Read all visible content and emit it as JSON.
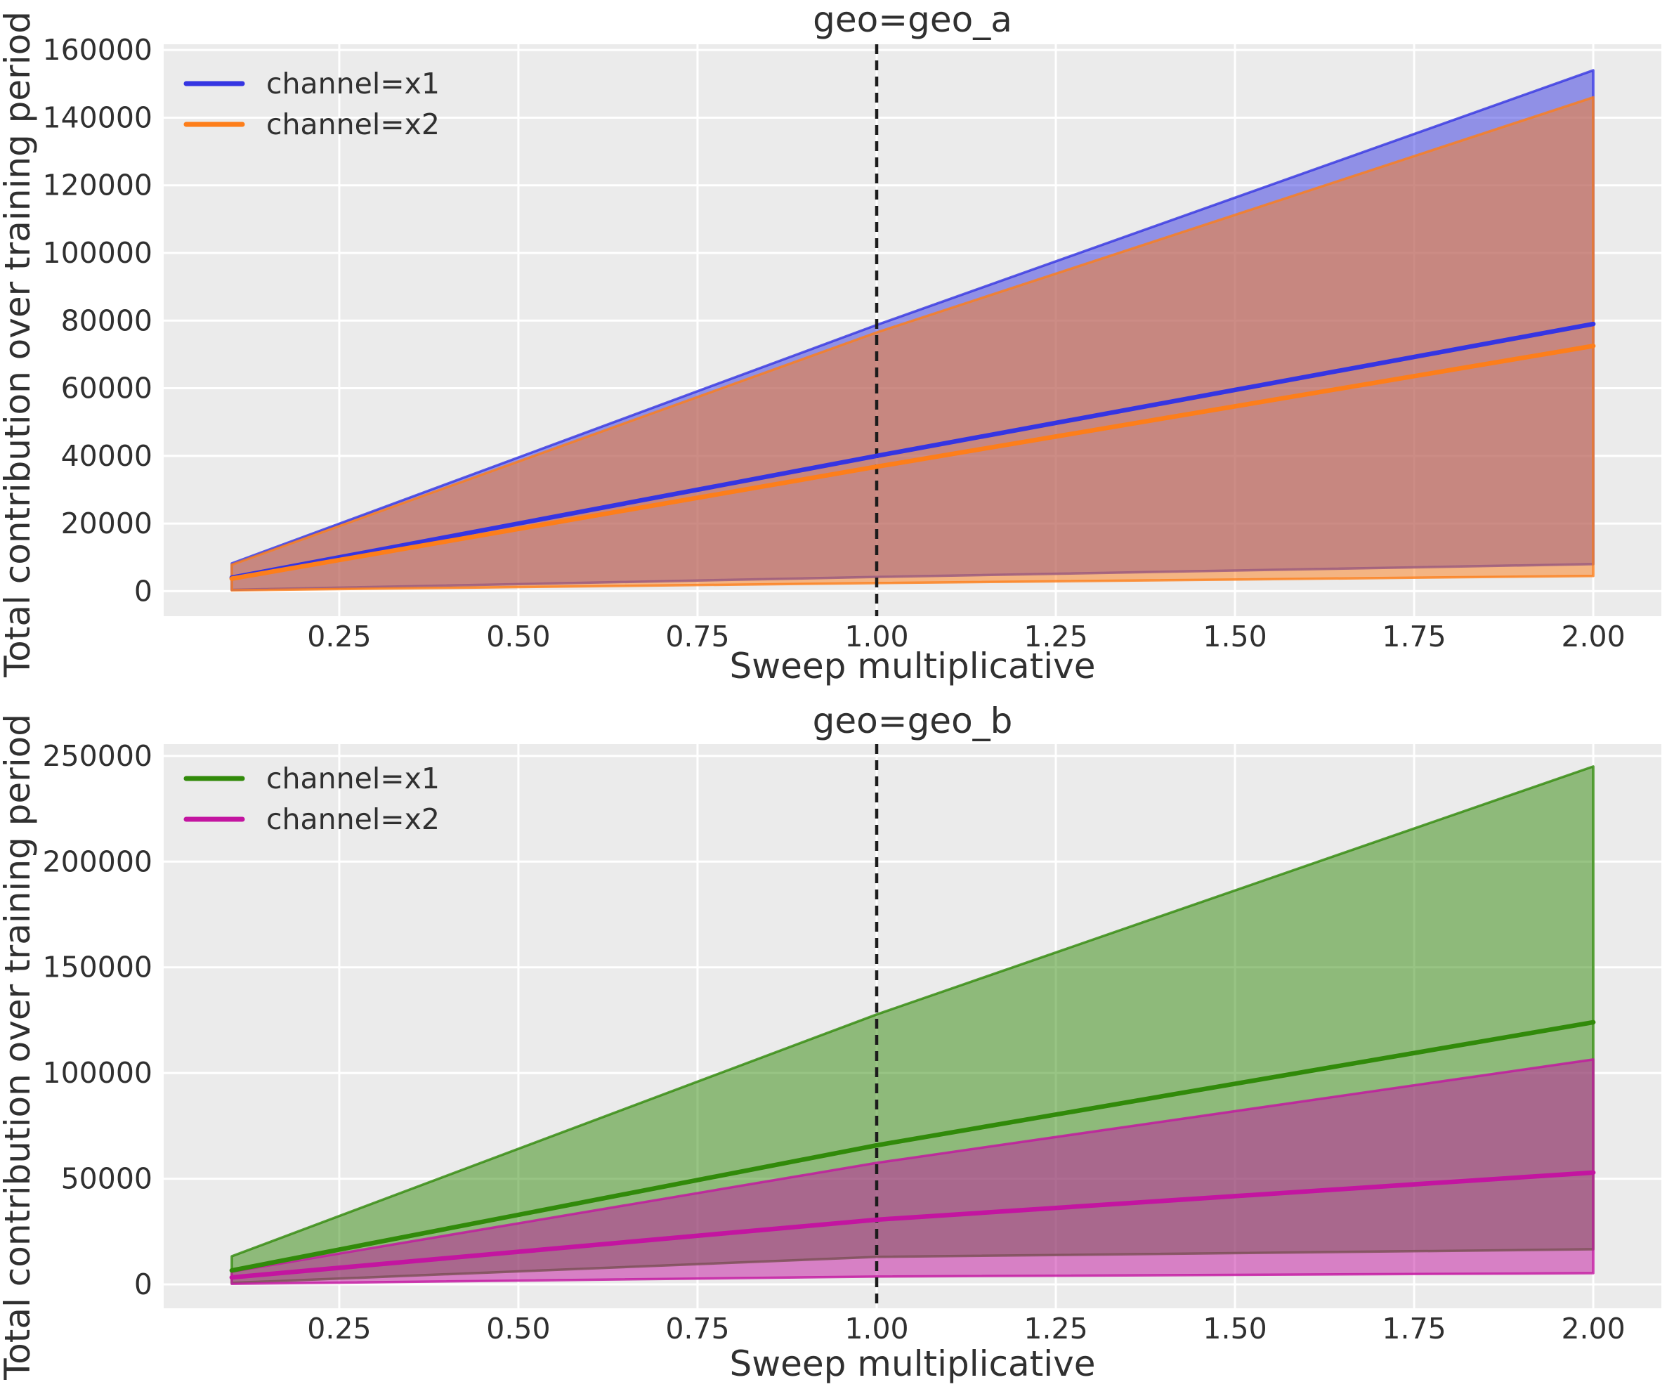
{
  "figure": {
    "background": "#ffffff",
    "plot_background": "#ebebeb",
    "grid_color": "#ffffff",
    "text_color": "#303030",
    "vline_color": "#1c1c1c"
  },
  "chart_data": [
    {
      "type": "line",
      "title": "geo=geo_a",
      "xlabel": "Sweep multiplicative",
      "ylabel": "Total contribution over training period",
      "xlim": [
        0.005,
        2.095
      ],
      "ylim": [
        -7400,
        161700
      ],
      "grid": true,
      "legend_position": "upper-left",
      "vline_x": 1.0,
      "xticks": [
        {
          "value": 0.25,
          "label": "0.25"
        },
        {
          "value": 0.5,
          "label": "0.50"
        },
        {
          "value": 0.75,
          "label": "0.75"
        },
        {
          "value": 1.0,
          "label": "1.00"
        },
        {
          "value": 1.25,
          "label": "1.25"
        },
        {
          "value": 1.5,
          "label": "1.50"
        },
        {
          "value": 1.75,
          "label": "1.75"
        },
        {
          "value": 2.0,
          "label": "2.00"
        }
      ],
      "yticks": [
        {
          "value": 0,
          "label": "0"
        },
        {
          "value": 20000,
          "label": "20000"
        },
        {
          "value": 40000,
          "label": "40000"
        },
        {
          "value": 60000,
          "label": "60000"
        },
        {
          "value": 80000,
          "label": "80000"
        },
        {
          "value": 100000,
          "label": "100000"
        },
        {
          "value": 120000,
          "label": "120000"
        },
        {
          "value": 140000,
          "label": "140000"
        },
        {
          "value": 160000,
          "label": "160000"
        }
      ],
      "x": [
        0.1,
        1.0,
        2.0
      ],
      "series": [
        {
          "name": "channel=x1",
          "color": "#3535e2",
          "mean": [
            4000,
            40000,
            79000
          ],
          "band_upper": [
            8200,
            78700,
            154000
          ],
          "band_lower": [
            400,
            4200,
            8000
          ]
        },
        {
          "name": "channel=x2",
          "color": "#fd7e1a",
          "mean": [
            3700,
            36800,
            72500
          ],
          "band_upper": [
            7800,
            76500,
            146000
          ],
          "band_lower": [
            250,
            2400,
            4500
          ]
        }
      ]
    },
    {
      "type": "line",
      "title": "geo=geo_b",
      "xlabel": "Sweep multiplicative",
      "ylabel": "Total contribution over training period",
      "xlim": [
        0.005,
        2.095
      ],
      "ylim": [
        -11300,
        255600
      ],
      "grid": true,
      "legend_position": "upper-left",
      "vline_x": 1.0,
      "xticks": [
        {
          "value": 0.25,
          "label": "0.25"
        },
        {
          "value": 0.5,
          "label": "0.50"
        },
        {
          "value": 0.75,
          "label": "0.75"
        },
        {
          "value": 1.0,
          "label": "1.00"
        },
        {
          "value": 1.25,
          "label": "1.25"
        },
        {
          "value": 1.5,
          "label": "1.50"
        },
        {
          "value": 1.75,
          "label": "1.75"
        },
        {
          "value": 2.0,
          "label": "2.00"
        }
      ],
      "yticks": [
        {
          "value": 0,
          "label": "0"
        },
        {
          "value": 50000,
          "label": "50000"
        },
        {
          "value": 100000,
          "label": "100000"
        },
        {
          "value": 150000,
          "label": "150000"
        },
        {
          "value": 200000,
          "label": "200000"
        },
        {
          "value": 250000,
          "label": "250000"
        }
      ],
      "x": [
        0.1,
        1.0,
        2.0
      ],
      "series": [
        {
          "name": "channel=x1",
          "color": "#318a0a",
          "mean": [
            6600,
            65800,
            124000
          ],
          "band_upper": [
            13300,
            127700,
            245000
          ],
          "band_lower": [
            700,
            13000,
            16600
          ]
        },
        {
          "name": "channel=x2",
          "color": "#c315a0",
          "mean": [
            3300,
            30600,
            52900
          ],
          "band_upper": [
            6000,
            57500,
            106400
          ],
          "band_lower": [
            250,
            3700,
            5300
          ]
        }
      ]
    }
  ]
}
